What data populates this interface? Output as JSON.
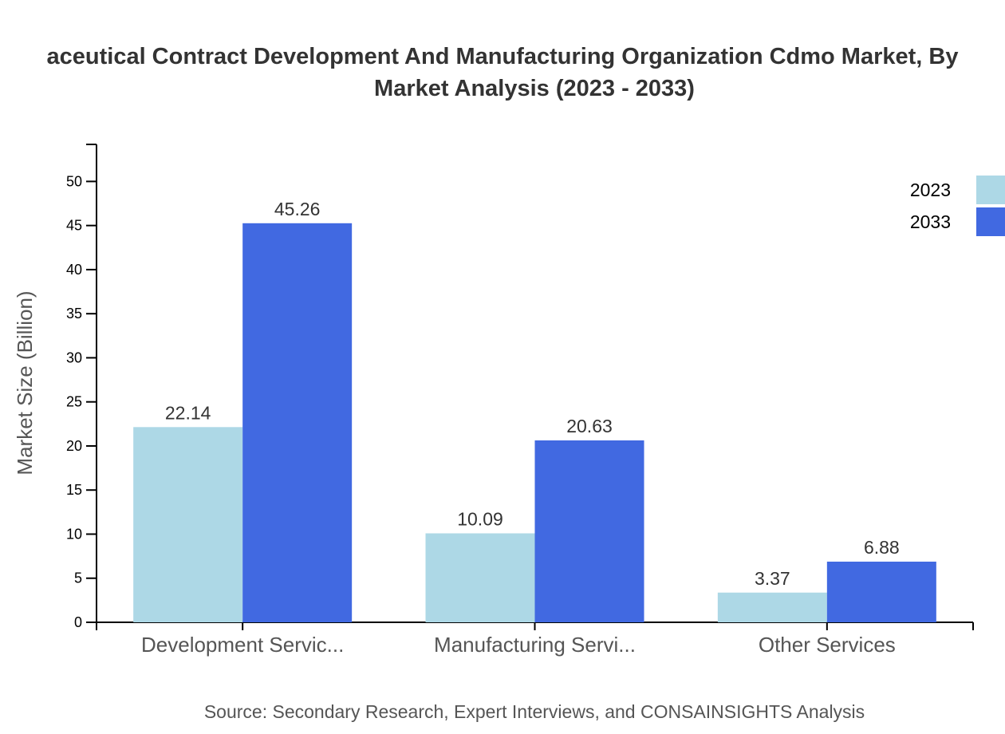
{
  "chart_data": {
    "type": "bar",
    "title_lines": [
      "aceutical Contract Development And Manufacturing Organization Cdmo Market, By",
      "Market Analysis (2023 - 2033)"
    ],
    "ylabel": "Market Size (Billion)",
    "xlabel": "",
    "categories": [
      "Development Servic...",
      "Manufacturing Servi...",
      "Other Services"
    ],
    "series": [
      {
        "name": "2023",
        "color": "#ADD8E6",
        "values": [
          22.14,
          10.09,
          3.37
        ]
      },
      {
        "name": "2033",
        "color": "#4169E1",
        "values": [
          45.26,
          20.63,
          6.88
        ]
      }
    ],
    "ylim": [
      0,
      54.2
    ],
    "yticks": [
      0,
      5,
      10,
      15,
      20,
      25,
      30,
      35,
      40,
      45,
      50
    ],
    "grid": false,
    "legend_position": "top-right",
    "source": "Source: Secondary Research, Expert Interviews, and CONSAINSIGHTS Analysis"
  }
}
